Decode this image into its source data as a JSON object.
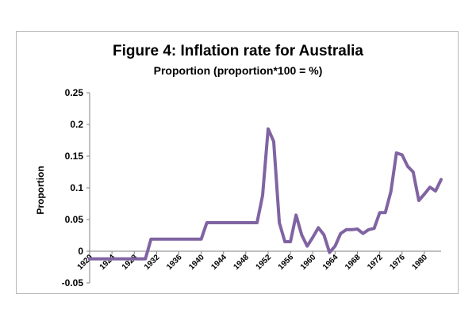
{
  "chart_data": {
    "type": "line",
    "title": "Figure 4: Inflation rate for Australia",
    "subtitle": "Proportion (proportion*100 = %)",
    "xlabel": "",
    "ylabel": "Proportion",
    "ylim": [
      -0.05,
      0.25
    ],
    "yticks": [
      -0.05,
      0,
      0.05,
      0.1,
      0.15,
      0.2,
      0.25
    ],
    "ytick_labels": [
      "-0.05",
      "0",
      "0.05",
      "0.1",
      "0.15",
      "0.2",
      "0.25"
    ],
    "xlim": [
      1920,
      1983
    ],
    "xticks": [
      1920,
      1924,
      1928,
      1932,
      1936,
      1940,
      1944,
      1948,
      1952,
      1956,
      1960,
      1964,
      1968,
      1972,
      1976,
      1980
    ],
    "grid": false,
    "legend": "none",
    "series": [
      {
        "color": "#8064a2",
        "x": [
          1920,
          1921,
          1922,
          1923,
          1924,
          1925,
          1926,
          1927,
          1928,
          1929,
          1930,
          1931,
          1932,
          1933,
          1934,
          1935,
          1936,
          1937,
          1938,
          1939,
          1940,
          1941,
          1942,
          1943,
          1944,
          1945,
          1946,
          1947,
          1948,
          1949,
          1950,
          1951,
          1952,
          1953,
          1954,
          1955,
          1956,
          1957,
          1958,
          1959,
          1960,
          1961,
          1962,
          1963,
          1964,
          1965,
          1966,
          1967,
          1968,
          1969,
          1970,
          1971,
          1972,
          1973,
          1974,
          1975,
          1976,
          1977,
          1978,
          1979,
          1980,
          1981,
          1982,
          1983
        ],
        "values": [
          -0.012,
          -0.012,
          -0.012,
          -0.012,
          -0.012,
          -0.012,
          -0.012,
          -0.012,
          -0.012,
          -0.012,
          -0.012,
          0.019,
          0.019,
          0.019,
          0.019,
          0.019,
          0.019,
          0.019,
          0.019,
          0.019,
          0.019,
          0.045,
          0.045,
          0.045,
          0.045,
          0.045,
          0.045,
          0.045,
          0.045,
          0.045,
          0.045,
          0.088,
          0.193,
          0.173,
          0.045,
          0.015,
          0.015,
          0.057,
          0.026,
          0.008,
          0.022,
          0.037,
          0.026,
          -0.002,
          0.008,
          0.028,
          0.034,
          0.034,
          0.035,
          0.028,
          0.034,
          0.036,
          0.061,
          0.061,
          0.094,
          0.155,
          0.152,
          0.134,
          0.125,
          0.08,
          0.09,
          0.101,
          0.095,
          0.113
        ]
      }
    ]
  }
}
